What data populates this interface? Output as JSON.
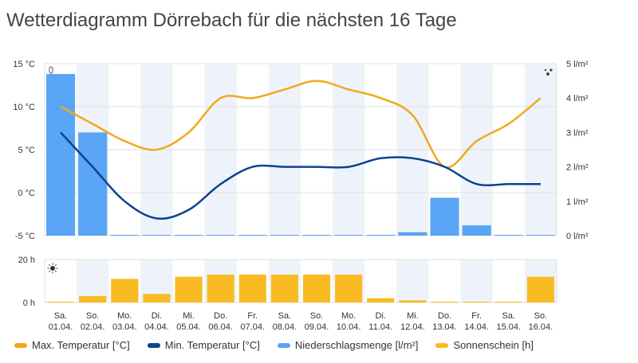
{
  "title": "Wetterdiagramm Dörrebach für die nächsten 16 Tage",
  "icons": {
    "thermometer": "thermometer-icon",
    "raindrops": "raindrops-icon",
    "sun": "sun-icon"
  },
  "colors": {
    "max": "#f0a91c",
    "min": "#0c448e",
    "rain": "#5aa5f5",
    "sun": "#f9bb23",
    "band": "#eef3fb",
    "grid": "#e2e2e2"
  },
  "chart_data": [
    {
      "type": "line+bar",
      "title": "",
      "categories": [
        "Sa.|01.04.",
        "So.|02.04.",
        "Mo.|03.04.",
        "Di.|04.04.",
        "Mi.|05.04.",
        "Do.|06.04.",
        "Fr.|07.04.",
        "Sa.|08.04.",
        "So.|09.04.",
        "Mo.|10.04.",
        "Di.|11.04.",
        "Mi.|12.04.",
        "Do.|13.04.",
        "Fr.|14.04.",
        "Sa.|15.04.",
        "So.|16.04."
      ],
      "y_left": {
        "ticks": [
          "15 °C",
          "10 °C",
          "5 °C",
          "0 °C",
          "-5 °C"
        ],
        "range": [
          -5,
          15
        ]
      },
      "y_right": {
        "ticks": [
          "5 l/m²",
          "4 l/m²",
          "3 l/m²",
          "2 l/m²",
          "1 l/m²",
          "0 l/m²"
        ],
        "range": [
          0,
          5
        ]
      },
      "series": [
        {
          "name": "Max. Temperatur [°C]",
          "type": "line",
          "axis": "left",
          "values": [
            10,
            8,
            6,
            5,
            7,
            11,
            11,
            12,
            13,
            12,
            11,
            9,
            3,
            6,
            8,
            11
          ]
        },
        {
          "name": "Min. Temperatur [°C]",
          "type": "line",
          "axis": "left",
          "values": [
            7,
            3,
            -1,
            -3,
            -2,
            1,
            3,
            3,
            3,
            3,
            4,
            4,
            3,
            1,
            1,
            1
          ]
        },
        {
          "name": "Niederschlagsmenge [l/m²]",
          "type": "bar",
          "axis": "right",
          "values": [
            4.7,
            3.0,
            0,
            0,
            0,
            0,
            0,
            0,
            0,
            0,
            0,
            0.1,
            1.1,
            0.3,
            0,
            0
          ]
        }
      ],
      "grid": true
    },
    {
      "type": "bar",
      "title": "",
      "categories": [
        "Sa.|01.04.",
        "So.|02.04.",
        "Mo.|03.04.",
        "Di.|04.04.",
        "Mi.|05.04.",
        "Do.|06.04.",
        "Fr.|07.04.",
        "Sa.|08.04.",
        "So.|09.04.",
        "Mo.|10.04.",
        "Di.|11.04.",
        "Mi.|12.04.",
        "Do.|13.04.",
        "Fr.|14.04.",
        "Sa.|15.04.",
        "So.|16.04."
      ],
      "y_left": {
        "ticks": [
          "20 h",
          "0 h"
        ],
        "range": [
          0,
          20
        ]
      },
      "series": [
        {
          "name": "Sonnenschein [h]",
          "type": "bar",
          "values": [
            0,
            3,
            11,
            4,
            12,
            13,
            13,
            13,
            13,
            13,
            2,
            1,
            0,
            0,
            0,
            12
          ]
        }
      ],
      "grid": true
    }
  ],
  "legend": [
    "Max. Temperatur [°C]",
    "Min. Temperatur [°C]",
    "Niederschlagsmenge [l/m²]",
    "Sonnenschein [h]"
  ]
}
